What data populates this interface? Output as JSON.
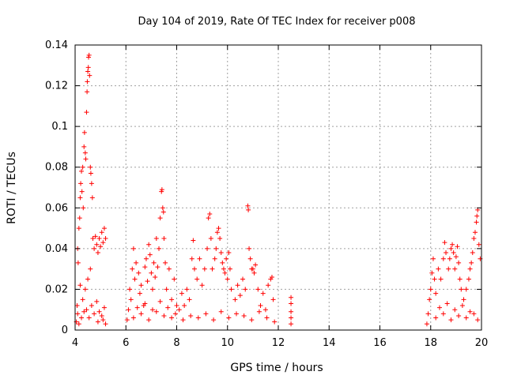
{
  "chart_data": {
    "type": "scatter",
    "title": "Day 104 of 2019, Rate Of TEC Index for receiver p008",
    "xlabel": "GPS time / hours",
    "ylabel": "ROTI / TECUs",
    "xlim": [
      4,
      20
    ],
    "ylim": [
      0,
      0.14
    ],
    "xticks": [
      "4",
      "6",
      "8",
      "10",
      "12",
      "14",
      "16",
      "18",
      "20"
    ],
    "yticks": [
      "0",
      "0.02",
      "0.04",
      "0.06",
      "0.08",
      "0.1",
      "0.12",
      "0.14"
    ],
    "grid": true,
    "marker": "+",
    "color": "#ff0000",
    "series": [
      {
        "name": "ROTI",
        "points": [
          [
            4.05,
            0.004
          ],
          [
            4.08,
            0.012
          ],
          [
            4.1,
            0.04
          ],
          [
            4.12,
            0.033
          ],
          [
            4.15,
            0.05
          ],
          [
            4.18,
            0.055
          ],
          [
            4.2,
            0.065
          ],
          [
            4.22,
            0.072
          ],
          [
            4.25,
            0.078
          ],
          [
            4.27,
            0.068
          ],
          [
            4.3,
            0.08
          ],
          [
            4.32,
            0.06
          ],
          [
            4.35,
            0.09
          ],
          [
            4.37,
            0.097
          ],
          [
            4.4,
            0.087
          ],
          [
            4.42,
            0.084
          ],
          [
            4.45,
            0.107
          ],
          [
            4.47,
            0.117
          ],
          [
            4.48,
            0.122
          ],
          [
            4.5,
            0.127
          ],
          [
            4.52,
            0.129
          ],
          [
            4.53,
            0.134
          ],
          [
            4.55,
            0.135
          ],
          [
            4.57,
            0.125
          ],
          [
            4.6,
            0.08
          ],
          [
            4.62,
            0.077
          ],
          [
            4.65,
            0.072
          ],
          [
            4.68,
            0.065
          ],
          [
            4.7,
            0.045
          ],
          [
            4.75,
            0.04
          ],
          [
            4.8,
            0.046
          ],
          [
            4.85,
            0.042
          ],
          [
            4.9,
            0.038
          ],
          [
            4.95,
            0.045
          ],
          [
            5.0,
            0.041
          ],
          [
            5.05,
            0.048
          ],
          [
            5.1,
            0.043
          ],
          [
            5.15,
            0.05
          ],
          [
            5.2,
            0.045
          ],
          [
            4.3,
            0.015
          ],
          [
            4.4,
            0.02
          ],
          [
            4.5,
            0.025
          ],
          [
            4.6,
            0.03
          ],
          [
            4.2,
            0.022
          ],
          [
            4.45,
            0.01
          ],
          [
            4.55,
            0.006
          ],
          [
            4.65,
            0.012
          ],
          [
            4.75,
            0.008
          ],
          [
            4.85,
            0.014
          ],
          [
            4.95,
            0.009
          ],
          [
            5.05,
            0.007
          ],
          [
            5.15,
            0.011
          ],
          [
            4.1,
            0.008
          ],
          [
            4.15,
            0.003
          ],
          [
            4.25,
            0.006
          ],
          [
            4.35,
            0.009
          ],
          [
            4.9,
            0.004
          ],
          [
            5.1,
            0.005
          ],
          [
            5.2,
            0.003
          ],
          [
            6.05,
            0.005
          ],
          [
            6.1,
            0.01
          ],
          [
            6.15,
            0.02
          ],
          [
            6.2,
            0.015
          ],
          [
            6.25,
            0.03
          ],
          [
            6.3,
            0.04
          ],
          [
            6.35,
            0.025
          ],
          [
            6.4,
            0.033
          ],
          [
            6.5,
            0.028
          ],
          [
            6.55,
            0.018
          ],
          [
            6.6,
            0.022
          ],
          [
            6.7,
            0.012
          ],
          [
            6.75,
            0.031
          ],
          [
            6.8,
            0.035
          ],
          [
            6.85,
            0.024
          ],
          [
            6.9,
            0.042
          ],
          [
            6.95,
            0.037
          ],
          [
            7.0,
            0.028
          ],
          [
            7.05,
            0.02
          ],
          [
            7.1,
            0.033
          ],
          [
            7.15,
            0.026
          ],
          [
            7.2,
            0.045
          ],
          [
            7.25,
            0.031
          ],
          [
            7.3,
            0.04
          ],
          [
            7.35,
            0.055
          ],
          [
            7.4,
            0.068
          ],
          [
            7.42,
            0.069
          ],
          [
            7.45,
            0.06
          ],
          [
            7.48,
            0.058
          ],
          [
            7.5,
            0.045
          ],
          [
            7.55,
            0.033
          ],
          [
            7.6,
            0.02
          ],
          [
            7.7,
            0.03
          ],
          [
            7.8,
            0.015
          ],
          [
            7.9,
            0.025
          ],
          [
            8.0,
            0.012
          ],
          [
            6.3,
            0.006
          ],
          [
            6.6,
            0.008
          ],
          [
            6.9,
            0.005
          ],
          [
            7.2,
            0.009
          ],
          [
            7.5,
            0.007
          ],
          [
            7.8,
            0.006
          ],
          [
            6.45,
            0.011
          ],
          [
            6.75,
            0.013
          ],
          [
            7.05,
            0.01
          ],
          [
            7.35,
            0.014
          ],
          [
            7.65,
            0.011
          ],
          [
            7.95,
            0.008
          ],
          [
            8.1,
            0.01
          ],
          [
            8.2,
            0.018
          ],
          [
            8.3,
            0.012
          ],
          [
            8.4,
            0.02
          ],
          [
            8.5,
            0.015
          ],
          [
            8.6,
            0.035
          ],
          [
            8.65,
            0.044
          ],
          [
            8.7,
            0.03
          ],
          [
            8.8,
            0.025
          ],
          [
            8.9,
            0.035
          ],
          [
            9.0,
            0.022
          ],
          [
            9.1,
            0.03
          ],
          [
            9.2,
            0.04
          ],
          [
            9.25,
            0.055
          ],
          [
            9.3,
            0.057
          ],
          [
            9.35,
            0.045
          ],
          [
            9.4,
            0.03
          ],
          [
            9.5,
            0.035
          ],
          [
            9.55,
            0.04
          ],
          [
            9.6,
            0.048
          ],
          [
            9.65,
            0.05
          ],
          [
            9.7,
            0.045
          ],
          [
            9.75,
            0.038
          ],
          [
            9.8,
            0.033
          ],
          [
            9.85,
            0.03
          ],
          [
            9.9,
            0.028
          ],
          [
            9.95,
            0.035
          ],
          [
            10.0,
            0.025
          ],
          [
            10.05,
            0.038
          ],
          [
            10.1,
            0.03
          ],
          [
            10.15,
            0.02
          ],
          [
            10.3,
            0.015
          ],
          [
            10.4,
            0.022
          ],
          [
            10.5,
            0.017
          ],
          [
            10.6,
            0.025
          ],
          [
            10.7,
            0.02
          ],
          [
            10.8,
            0.061
          ],
          [
            10.82,
            0.059
          ],
          [
            10.85,
            0.04
          ],
          [
            10.9,
            0.035
          ],
          [
            10.95,
            0.03
          ],
          [
            11.0,
            0.03
          ],
          [
            11.05,
            0.028
          ],
          [
            11.1,
            0.032
          ],
          [
            11.2,
            0.02
          ],
          [
            11.3,
            0.012
          ],
          [
            11.4,
            0.018
          ],
          [
            11.5,
            0.01
          ],
          [
            11.6,
            0.022
          ],
          [
            11.7,
            0.025
          ],
          [
            11.75,
            0.026
          ],
          [
            11.8,
            0.015
          ],
          [
            8.25,
            0.005
          ],
          [
            8.55,
            0.007
          ],
          [
            8.85,
            0.006
          ],
          [
            9.15,
            0.008
          ],
          [
            9.45,
            0.005
          ],
          [
            9.75,
            0.009
          ],
          [
            10.05,
            0.006
          ],
          [
            10.35,
            0.008
          ],
          [
            10.65,
            0.007
          ],
          [
            10.95,
            0.005
          ],
          [
            11.25,
            0.009
          ],
          [
            11.55,
            0.006
          ],
          [
            11.85,
            0.004
          ],
          [
            12.5,
            0.003
          ],
          [
            12.5,
            0.006
          ],
          [
            12.5,
            0.009
          ],
          [
            12.5,
            0.013
          ],
          [
            12.5,
            0.016
          ],
          [
            17.85,
            0.003
          ],
          [
            17.9,
            0.008
          ],
          [
            17.95,
            0.015
          ],
          [
            18.0,
            0.02
          ],
          [
            18.05,
            0.028
          ],
          [
            18.1,
            0.035
          ],
          [
            18.15,
            0.025
          ],
          [
            18.2,
            0.018
          ],
          [
            18.3,
            0.03
          ],
          [
            18.4,
            0.025
          ],
          [
            18.5,
            0.035
          ],
          [
            18.55,
            0.043
          ],
          [
            18.6,
            0.038
          ],
          [
            18.7,
            0.03
          ],
          [
            18.75,
            0.035
          ],
          [
            18.8,
            0.04
          ],
          [
            18.85,
            0.042
          ],
          [
            18.9,
            0.038
          ],
          [
            18.95,
            0.03
          ],
          [
            19.0,
            0.036
          ],
          [
            19.05,
            0.041
          ],
          [
            19.1,
            0.033
          ],
          [
            19.15,
            0.025
          ],
          [
            19.2,
            0.02
          ],
          [
            19.3,
            0.015
          ],
          [
            19.4,
            0.02
          ],
          [
            19.5,
            0.025
          ],
          [
            19.55,
            0.03
          ],
          [
            19.6,
            0.033
          ],
          [
            19.65,
            0.038
          ],
          [
            19.7,
            0.045
          ],
          [
            19.75,
            0.048
          ],
          [
            19.8,
            0.053
          ],
          [
            19.82,
            0.056
          ],
          [
            19.85,
            0.059
          ],
          [
            19.9,
            0.042
          ],
          [
            19.95,
            0.035
          ],
          [
            18.2,
            0.006
          ],
          [
            18.5,
            0.008
          ],
          [
            18.8,
            0.005
          ],
          [
            19.1,
            0.007
          ],
          [
            19.4,
            0.006
          ],
          [
            19.7,
            0.008
          ],
          [
            18.35,
            0.011
          ],
          [
            18.65,
            0.013
          ],
          [
            18.95,
            0.01
          ],
          [
            19.25,
            0.012
          ],
          [
            19.55,
            0.009
          ],
          [
            19.85,
            0.005
          ]
        ]
      }
    ]
  }
}
